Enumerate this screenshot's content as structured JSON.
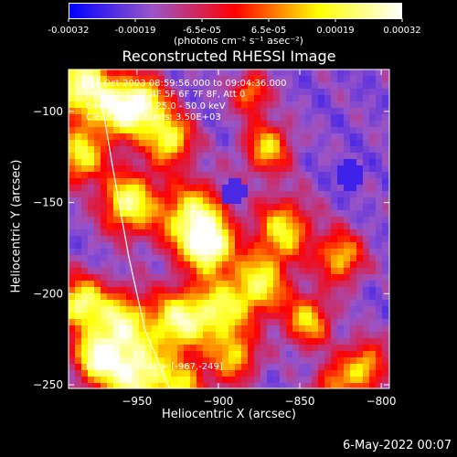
{
  "colorbar": {
    "ticks": [
      "-0.00032",
      "-0.00019",
      "-6.5e-05",
      "6.5e-05",
      "0.00019",
      "0.00032"
    ],
    "unit_label": "(photons cm⁻² s⁻¹ asec⁻²)",
    "colors": [
      "#0000ff",
      "#9a55c8",
      "#ff0000",
      "#ffff00",
      "#ffffff"
    ]
  },
  "footer": {
    "timestamp": "6-May-2022 00:07"
  },
  "chart_data": {
    "type": "heatmap",
    "title": "Reconstructed RHESSI Image",
    "xlabel": "Heliocentric X (arcsec)",
    "ylabel": "Heliocentric Y (arcsec)",
    "xlim": [
      -992,
      -795
    ],
    "ylim": [
      -252,
      -77
    ],
    "xticks": [
      -950,
      -900,
      -850,
      -800
    ],
    "yticks": [
      -100,
      -150,
      -200,
      -250
    ],
    "value_range": [
      -0.00032,
      0.00032
    ],
    "limb_curve": [
      [
        -975,
        -77
      ],
      [
        -965,
        -130
      ],
      [
        -955,
        -180
      ],
      [
        -945,
        -220
      ],
      [
        -930,
        -252
      ]
    ],
    "peak": [
      -967,
      -249
    ],
    "annotations": [
      "1-Oct-2003 08:59:56.000 to 09:04:36.000",
      "Detectors: 3F 4F 5F 6F 7F 8F, Att 0",
      "Energy Range: 25.0 - 50.0 keV",
      "Clean    Total counts: 3.50E+03",
      "Position of Peak = [-967,-249]"
    ]
  }
}
